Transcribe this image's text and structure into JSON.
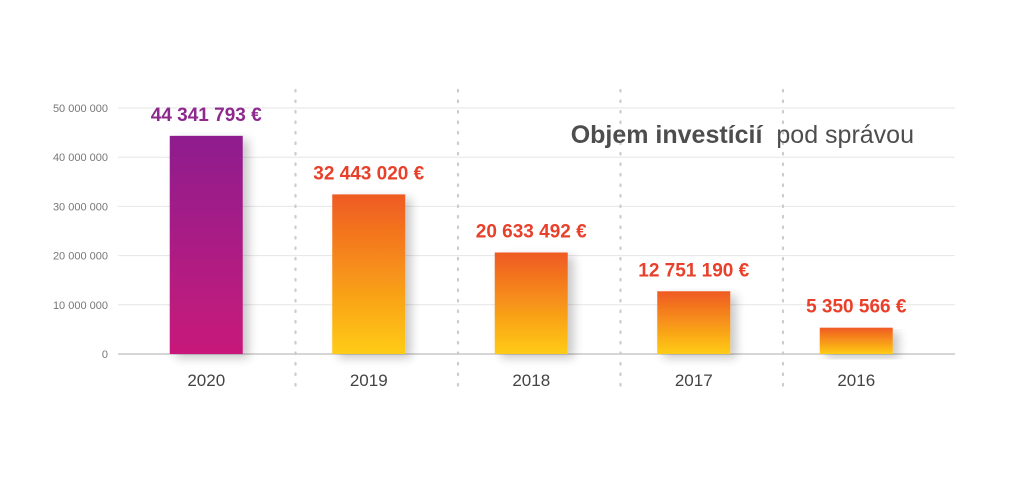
{
  "chart_data": {
    "type": "bar",
    "title_bold": "Objem investícií",
    "title_rest": "pod správou",
    "categories": [
      "2020",
      "2019",
      "2018",
      "2017",
      "2016"
    ],
    "values": [
      44341793,
      32443020,
      20633492,
      12751190,
      5350566
    ],
    "value_labels": [
      "44 341 793 €",
      "32 443 020 €",
      "20 633 492 €",
      "12 751 190 €",
      "5 350 566 €"
    ],
    "y_ticks": [
      0,
      10000000,
      20000000,
      30000000,
      40000000,
      50000000
    ],
    "y_tick_labels": [
      "0",
      "10 000 000",
      "20 000 000",
      "30 000 000",
      "40 000 000",
      "50 000 000"
    ],
    "ylim": [
      0,
      50000000
    ],
    "grid": true,
    "xlabel": "",
    "ylabel": "",
    "colors": {
      "highlight_top": "#8e1e8e",
      "highlight_bottom": "#c8197a",
      "bar_top": "#ef5a22",
      "bar_bottom": "#ffcc13",
      "highlight_label": "#8e2a8e",
      "label": "#e8402a",
      "grid": "#e6e6e6",
      "divider": "#cccccc"
    }
  }
}
